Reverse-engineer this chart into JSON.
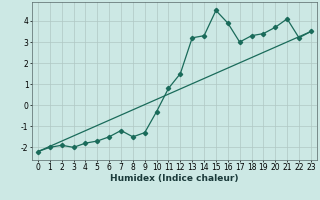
{
  "title": "",
  "xlabel": "Humidex (Indice chaleur)",
  "ylabel": "",
  "bg_color": "#cce8e4",
  "grid_color": "#b0c8c4",
  "line_color": "#1a6b5a",
  "xlim": [
    -0.5,
    23.5
  ],
  "ylim": [
    -2.6,
    4.9
  ],
  "xticks": [
    0,
    1,
    2,
    3,
    4,
    5,
    6,
    7,
    8,
    9,
    10,
    11,
    12,
    13,
    14,
    15,
    16,
    17,
    18,
    19,
    20,
    21,
    22,
    23
  ],
  "yticks": [
    -2,
    -1,
    0,
    1,
    2,
    3,
    4
  ],
  "curve_x": [
    0,
    1,
    2,
    3,
    4,
    5,
    6,
    7,
    8,
    9,
    10,
    11,
    12,
    13,
    14,
    15,
    16,
    17,
    18,
    19,
    20,
    21,
    22,
    23
  ],
  "curve_y": [
    -2.2,
    -2.0,
    -1.9,
    -2.0,
    -1.8,
    -1.7,
    -1.5,
    -1.2,
    -1.5,
    -1.3,
    -0.3,
    0.8,
    1.5,
    3.2,
    3.3,
    4.5,
    3.9,
    3.0,
    3.3,
    3.4,
    3.7,
    4.1,
    3.2,
    3.5
  ],
  "trend_x": [
    0,
    23
  ],
  "trend_y": [
    -2.2,
    3.5
  ],
  "marker_size": 2.2,
  "line_width": 0.9,
  "tick_fontsize": 5.5,
  "xlabel_fontsize": 6.5
}
